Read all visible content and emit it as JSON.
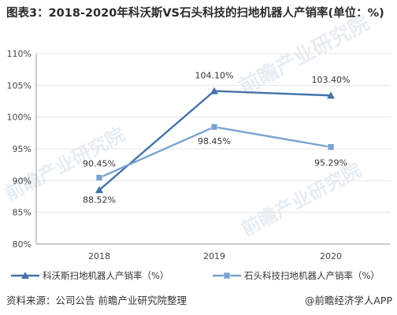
{
  "title": "图表3：2018-2020年科沃斯VS石头科技的扫地机器人产销率(单位：%)",
  "footer": {
    "source": "资料来源：公司公告 前瞻产业研究院整理",
    "credit": "@前瞻经济学人APP"
  },
  "watermarks": [
    "前瞻产业研究院",
    "前瞻产业研究院",
    "前瞻产业研究院"
  ],
  "chart_data": {
    "type": "line",
    "categories": [
      "2018",
      "2019",
      "2020"
    ],
    "ylim": [
      80,
      110
    ],
    "yticks": [
      80,
      85,
      90,
      95,
      100,
      105,
      110
    ],
    "ytick_labels": [
      "80%",
      "85%",
      "90%",
      "95%",
      "100%",
      "105%",
      "110%"
    ],
    "grid": true,
    "legend_position": "bottom",
    "series": [
      {
        "name": "科沃斯扫地机器人产销率（%）",
        "values": [
          88.52,
          104.1,
          103.4
        ],
        "labels": [
          "88.52%",
          "104.10%",
          "103.40%"
        ],
        "color": "#4472a8",
        "marker": "triangle"
      },
      {
        "name": "石头科技扫地机器人产销率（%）",
        "values": [
          90.45,
          98.45,
          95.29
        ],
        "labels": [
          "90.45%",
          "98.45%",
          "95.29%"
        ],
        "color": "#7aa3cf",
        "marker": "square"
      }
    ]
  }
}
